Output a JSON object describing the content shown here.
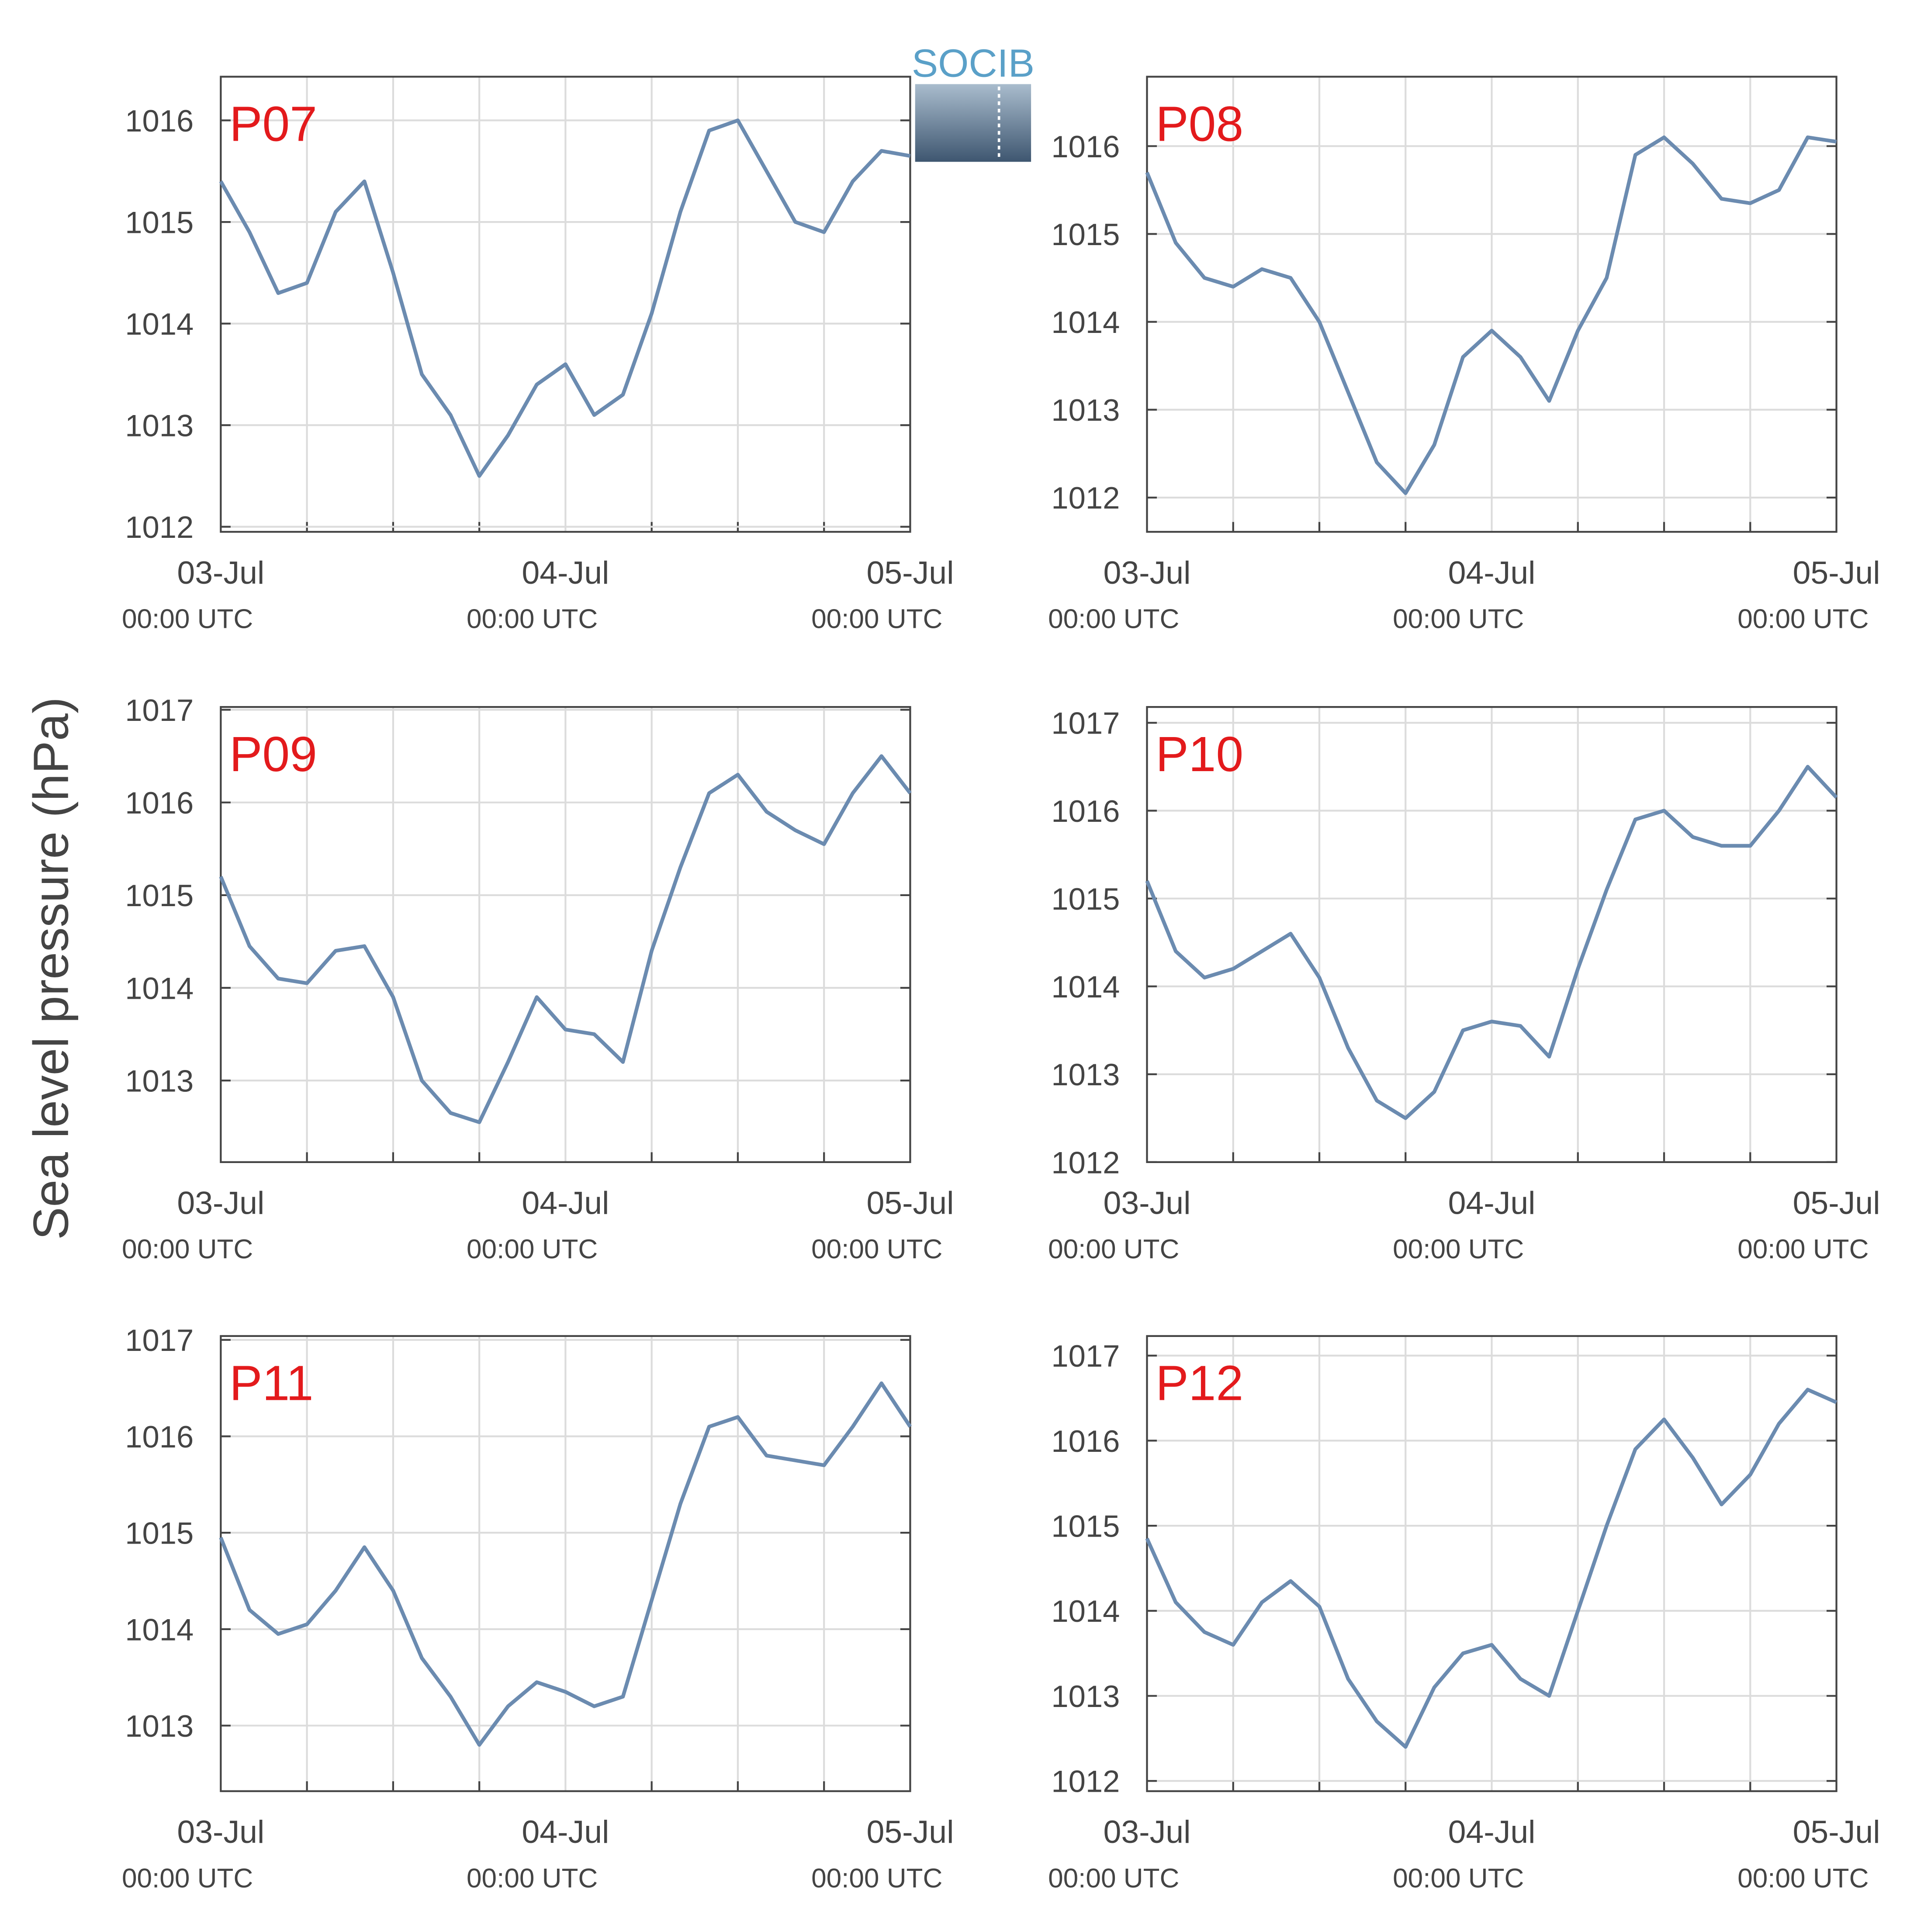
{
  "logo": "SOCIB",
  "ylabel": "Sea level pressure (hPa)",
  "chart_data": [
    {
      "type": "line",
      "title": "P07",
      "color": "#6b8bb0",
      "x": [
        0,
        2,
        4,
        6,
        8,
        10,
        12,
        14,
        16,
        18,
        20,
        22,
        24,
        26,
        28,
        30,
        32,
        34,
        36,
        38,
        40,
        42,
        44,
        46,
        48
      ],
      "values": [
        1015.4,
        1014.9,
        1014.3,
        1014.4,
        1015.1,
        1015.4,
        1014.5,
        1013.5,
        1013.1,
        1012.5,
        1012.9,
        1013.4,
        1013.6,
        1013.1,
        1013.3,
        1014.1,
        1015.1,
        1015.9,
        1016.0,
        1015.5,
        1015.0,
        1014.9,
        1015.4,
        1015.7,
        1015.65
      ],
      "xlim": [
        0,
        48
      ],
      "xticks": [
        {
          "value": 0,
          "label": "03-Jul",
          "sublabel": "00:00 UTC"
        },
        {
          "value": 24,
          "label": "04-Jul",
          "sublabel": "00:00 UTC"
        },
        {
          "value": 48,
          "label": "05-Jul",
          "sublabel": "00:00 UTC"
        }
      ],
      "xgrid": [
        6,
        12,
        18,
        30,
        36,
        42
      ],
      "ylim": [
        1011.95,
        1016.43
      ],
      "yticks": [
        1012,
        1013,
        1014,
        1015,
        1016
      ],
      "grid": true
    },
    {
      "type": "line",
      "title": "P08",
      "color": "#6b8bb0",
      "x": [
        0,
        2,
        4,
        6,
        8,
        10,
        12,
        14,
        16,
        18,
        20,
        22,
        24,
        26,
        28,
        30,
        32,
        34,
        36,
        38,
        40,
        42,
        44,
        46,
        48
      ],
      "values": [
        1015.7,
        1014.9,
        1014.5,
        1014.4,
        1014.6,
        1014.5,
        1014.0,
        1013.2,
        1012.4,
        1012.05,
        1012.6,
        1013.6,
        1013.9,
        1013.6,
        1013.1,
        1013.9,
        1014.5,
        1015.9,
        1016.1,
        1015.8,
        1015.4,
        1015.35,
        1015.5,
        1016.1,
        1016.05
      ],
      "xlim": [
        0,
        48
      ],
      "xticks": [
        {
          "value": 0,
          "label": "03-Jul",
          "sublabel": "00:00 UTC"
        },
        {
          "value": 24,
          "label": "04-Jul",
          "sublabel": "00:00 UTC"
        },
        {
          "value": 48,
          "label": "05-Jul",
          "sublabel": "00:00 UTC"
        }
      ],
      "xgrid": [
        6,
        12,
        18,
        30,
        36,
        42
      ],
      "ylim": [
        1011.61,
        1016.79
      ],
      "yticks": [
        1012,
        1013,
        1014,
        1015,
        1016
      ],
      "grid": true
    },
    {
      "type": "line",
      "title": "P09",
      "color": "#6b8bb0",
      "x": [
        0,
        2,
        4,
        6,
        8,
        10,
        12,
        14,
        16,
        18,
        20,
        22,
        24,
        26,
        28,
        30,
        32,
        34,
        36,
        38,
        40,
        42,
        44,
        46,
        48
      ],
      "values": [
        1015.2,
        1014.45,
        1014.1,
        1014.05,
        1014.4,
        1014.45,
        1013.9,
        1013.0,
        1012.65,
        1012.55,
        1013.2,
        1013.9,
        1013.55,
        1013.5,
        1013.2,
        1014.4,
        1015.3,
        1016.1,
        1016.3,
        1015.9,
        1015.7,
        1015.55,
        1016.1,
        1016.5,
        1016.1
      ],
      "xlim": [
        0,
        48
      ],
      "xticks": [
        {
          "value": 0,
          "label": "03-Jul",
          "sublabel": "00:00 UTC"
        },
        {
          "value": 24,
          "label": "04-Jul",
          "sublabel": "00:00 UTC"
        },
        {
          "value": 48,
          "label": "05-Jul",
          "sublabel": "00:00 UTC"
        }
      ],
      "xgrid": [
        6,
        12,
        18,
        30,
        36,
        42
      ],
      "ylim": [
        1012.12,
        1017.03
      ],
      "yticks": [
        1013,
        1014,
        1015,
        1016,
        1017
      ],
      "grid": true
    },
    {
      "type": "line",
      "title": "P10",
      "color": "#6b8bb0",
      "x": [
        0,
        2,
        4,
        6,
        8,
        10,
        12,
        14,
        16,
        18,
        20,
        22,
        24,
        26,
        28,
        30,
        32,
        34,
        36,
        38,
        40,
        42,
        44,
        46,
        48
      ],
      "values": [
        1015.2,
        1014.4,
        1014.1,
        1014.2,
        1014.4,
        1014.6,
        1014.1,
        1013.3,
        1012.7,
        1012.5,
        1012.8,
        1013.5,
        1013.6,
        1013.55,
        1013.2,
        1014.2,
        1015.1,
        1015.9,
        1016.0,
        1015.7,
        1015.6,
        1015.6,
        1016.0,
        1016.5,
        1016.15
      ],
      "xlim": [
        0,
        48
      ],
      "xticks": [
        {
          "value": 0,
          "label": "03-Jul",
          "sublabel": "00:00 UTC"
        },
        {
          "value": 24,
          "label": "04-Jul",
          "sublabel": "00:00 UTC"
        },
        {
          "value": 48,
          "label": "05-Jul",
          "sublabel": "00:00 UTC"
        }
      ],
      "xgrid": [
        6,
        12,
        18,
        30,
        36,
        42
      ],
      "ylim": [
        1012.0,
        1017.18
      ],
      "yticks": [
        1012,
        1013,
        1014,
        1015,
        1016,
        1017
      ],
      "grid": true
    },
    {
      "type": "line",
      "title": "P11",
      "color": "#6b8bb0",
      "x": [
        0,
        2,
        4,
        6,
        8,
        10,
        12,
        14,
        16,
        18,
        20,
        22,
        24,
        26,
        28,
        30,
        32,
        34,
        36,
        38,
        40,
        42,
        44,
        46,
        48
      ],
      "values": [
        1014.95,
        1014.2,
        1013.95,
        1014.05,
        1014.4,
        1014.85,
        1014.4,
        1013.7,
        1013.3,
        1012.8,
        1013.2,
        1013.45,
        1013.35,
        1013.2,
        1013.3,
        1014.3,
        1015.3,
        1016.1,
        1016.2,
        1015.8,
        1015.75,
        1015.7,
        1016.1,
        1016.55,
        1016.1
      ],
      "xlim": [
        0,
        48
      ],
      "xticks": [
        {
          "value": 0,
          "label": "03-Jul",
          "sublabel": "00:00 UTC"
        },
        {
          "value": 24,
          "label": "04-Jul",
          "sublabel": "00:00 UTC"
        },
        {
          "value": 48,
          "label": "05-Jul",
          "sublabel": "00:00 UTC"
        }
      ],
      "xgrid": [
        6,
        12,
        18,
        30,
        36,
        42
      ],
      "ylim": [
        1012.32,
        1017.04
      ],
      "yticks": [
        1013,
        1014,
        1015,
        1016,
        1017
      ],
      "grid": true
    },
    {
      "type": "line",
      "title": "P12",
      "color": "#6b8bb0",
      "x": [
        0,
        2,
        4,
        6,
        8,
        10,
        12,
        14,
        16,
        18,
        20,
        22,
        24,
        26,
        28,
        30,
        32,
        34,
        36,
        38,
        40,
        42,
        44,
        46,
        48
      ],
      "values": [
        1014.85,
        1014.1,
        1013.75,
        1013.6,
        1014.1,
        1014.35,
        1014.05,
        1013.2,
        1012.7,
        1012.4,
        1013.1,
        1013.5,
        1013.6,
        1013.2,
        1013.0,
        1014.0,
        1015.0,
        1015.9,
        1016.25,
        1015.8,
        1015.25,
        1015.6,
        1016.2,
        1016.6,
        1016.45
      ],
      "xlim": [
        0,
        48
      ],
      "xticks": [
        {
          "value": 0,
          "label": "03-Jul",
          "sublabel": "00:00 UTC"
        },
        {
          "value": 24,
          "label": "04-Jul",
          "sublabel": "00:00 UTC"
        },
        {
          "value": 48,
          "label": "05-Jul",
          "sublabel": "00:00 UTC"
        }
      ],
      "xgrid": [
        6,
        12,
        18,
        30,
        36,
        42
      ],
      "ylim": [
        1011.88,
        1017.23
      ],
      "yticks": [
        1012,
        1013,
        1014,
        1015,
        1016,
        1017
      ],
      "grid": true
    }
  ]
}
